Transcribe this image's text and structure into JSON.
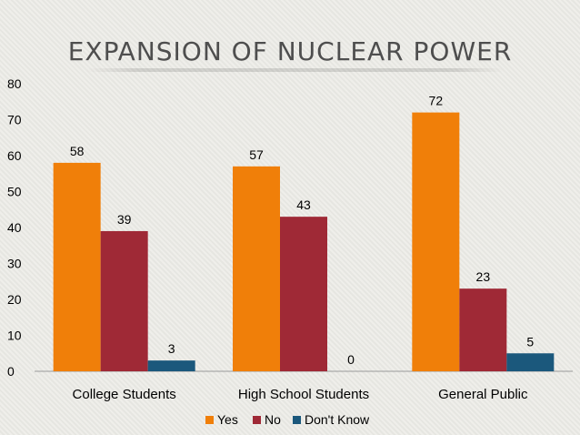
{
  "slide": {
    "title": "EXPANSION OF NUCLEAR POWER"
  },
  "colors": {
    "yes": "#F07F09",
    "no": "#9F2936",
    "dont_know": "#1B587C"
  },
  "chart_data": {
    "type": "bar",
    "title": "EXPANSION OF NUCLEAR POWER",
    "categories": [
      "College Students",
      "High School Students",
      "General Public"
    ],
    "series": [
      {
        "name": "Yes",
        "values": [
          58,
          57,
          72
        ]
      },
      {
        "name": "No",
        "values": [
          39,
          43,
          23
        ]
      },
      {
        "name": "Don't Know",
        "values": [
          3,
          0,
          5
        ]
      }
    ],
    "ylim": [
      0,
      80
    ],
    "yticks": [
      0,
      10,
      20,
      30,
      40,
      50,
      60,
      70,
      80
    ],
    "grid": false,
    "legend": "bottom",
    "data_labels": true
  }
}
